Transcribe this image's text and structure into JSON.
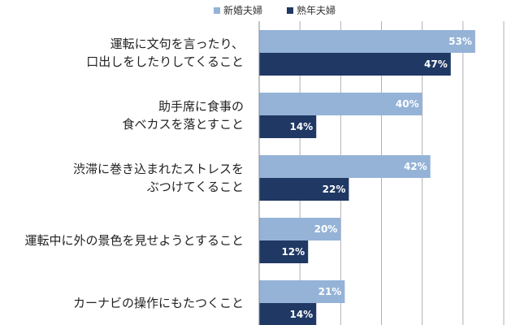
{
  "chart_data": {
    "type": "bar",
    "orientation": "horizontal",
    "categories": [
      [
        "運転に文句を言ったり、",
        "口出しをしたりしてくること"
      ],
      [
        "助手席に食事の",
        "食べカスを落とすこと"
      ],
      [
        "渋滞に巻き込まれたストレスを",
        "ぶつけてくること"
      ],
      [
        "運転中に外の景色を見せようとすること"
      ],
      [
        "カーナビの操作にもたつくこと"
      ]
    ],
    "series": [
      {
        "name": "新婚夫婦",
        "values": [
          53,
          40,
          42,
          20,
          21
        ],
        "labels": [
          "53%",
          "40%",
          "42%",
          "20%",
          "21%"
        ],
        "color": "#95b3d7",
        "label_color": "#ffffff"
      },
      {
        "name": "熟年夫婦",
        "values": [
          47,
          14,
          22,
          12,
          14
        ],
        "labels": [
          "47%",
          "14%",
          "22%",
          "12%",
          "14%"
        ],
        "color": "#1f3864",
        "label_color": "#ffffff"
      }
    ],
    "xlim": [
      0,
      60
    ],
    "grid": true,
    "legend": "top"
  }
}
